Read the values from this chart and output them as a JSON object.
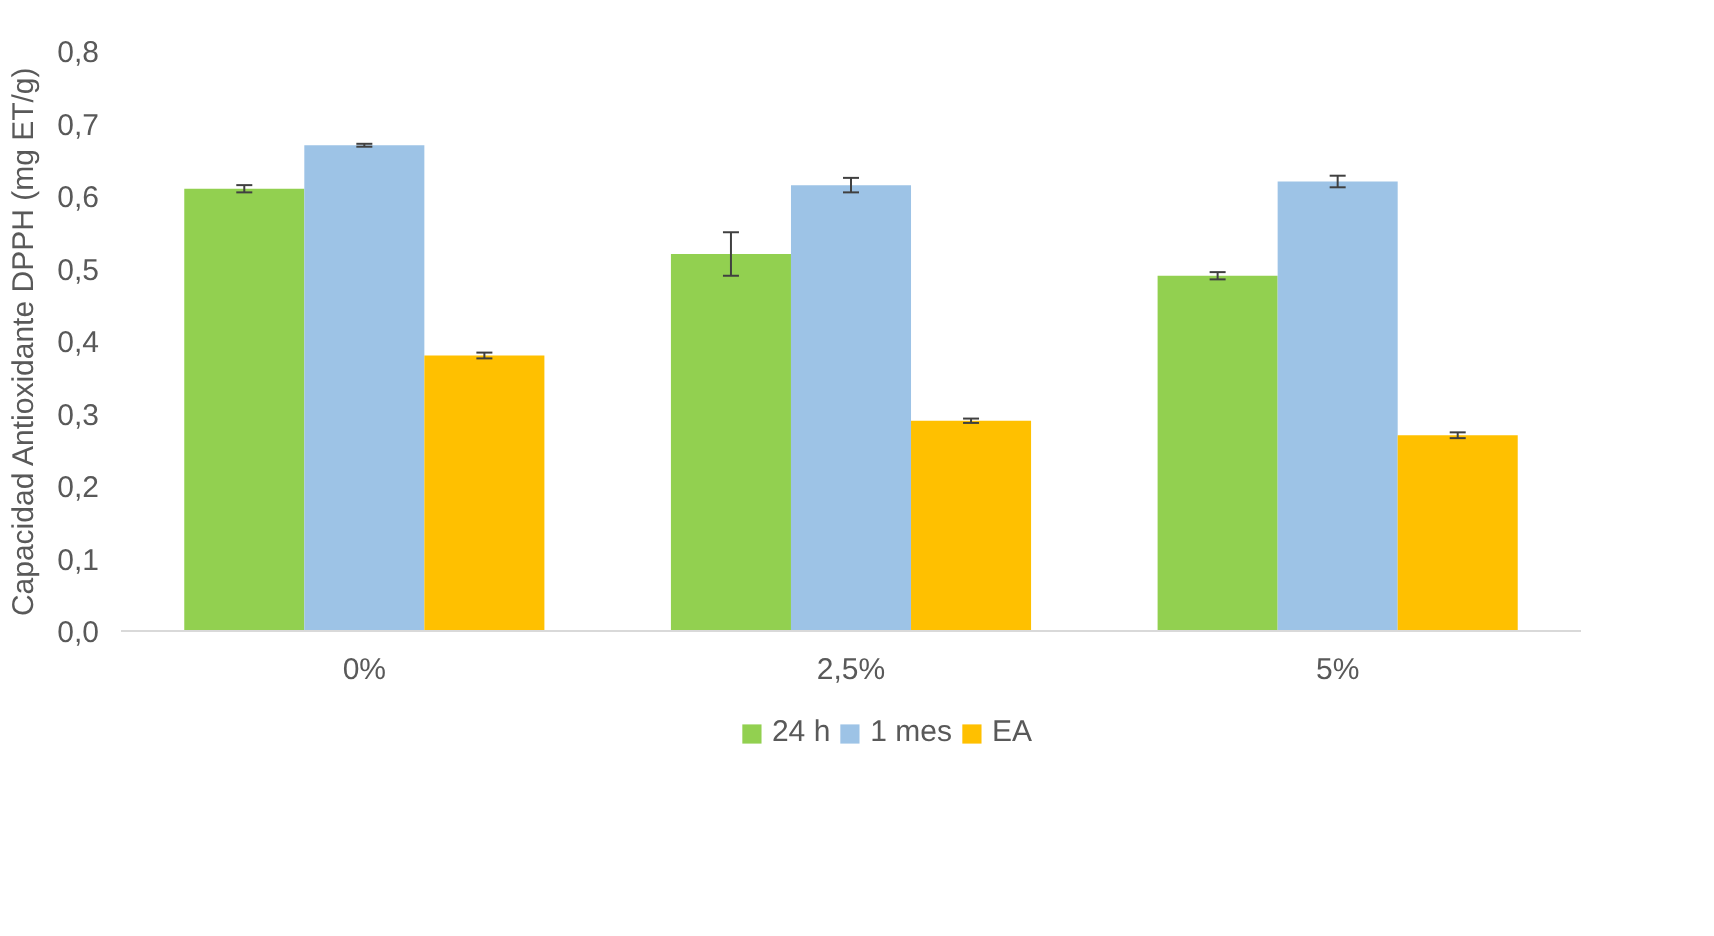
{
  "chart_data": {
    "type": "bar",
    "ylabel": "Capacidad Antioxidante DPPH (mg ET/g)",
    "categories": [
      "0%",
      "2,5%",
      "5%"
    ],
    "series": [
      {
        "name": "24 h",
        "color": "#92d050",
        "values": [
          0.61,
          0.52,
          0.49
        ],
        "errors": [
          0.005,
          0.03,
          0.005
        ]
      },
      {
        "name": "1 mes",
        "color": "#9dc3e6",
        "values": [
          0.67,
          0.615,
          0.62
        ],
        "errors": [
          0.002,
          0.01,
          0.008
        ]
      },
      {
        "name": "EA",
        "color": "#ffc000",
        "values": [
          0.38,
          0.29,
          0.27
        ],
        "errors": [
          0.004,
          0.003,
          0.004
        ]
      }
    ],
    "ylim": [
      0,
      0.8
    ],
    "yticks": [
      {
        "value": 0,
        "label": "0,0"
      },
      {
        "value": 0.1,
        "label": "0,1"
      },
      {
        "value": 0.2,
        "label": "0,2"
      },
      {
        "value": 0.3,
        "label": "0,3"
      },
      {
        "value": 0.4,
        "label": "0,4"
      },
      {
        "value": 0.5,
        "label": "0,5"
      },
      {
        "value": 0.6,
        "label": "0,6"
      },
      {
        "value": 0.7,
        "label": "0,7"
      },
      {
        "value": 0.8,
        "label": "0,8"
      }
    ],
    "grid": false,
    "legend": "bottom"
  }
}
